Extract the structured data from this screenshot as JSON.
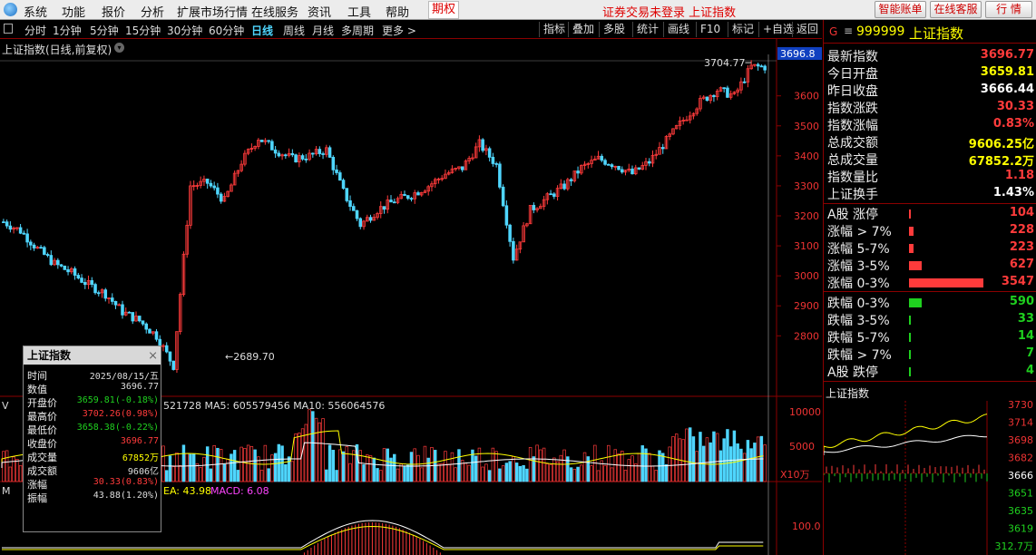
{
  "menu": {
    "items": [
      "系统",
      "功能",
      "报价",
      "分析",
      "扩展市场行情",
      "在线服务",
      "资讯",
      "工具",
      "帮助"
    ],
    "qi_label": "期权",
    "login_status": "证券交易未登录 上证指数",
    "right_buttons": [
      "智能账单",
      "在线客服",
      "行 情"
    ]
  },
  "toolbar": {
    "periods": [
      "分时",
      "1分钟",
      "5分钟",
      "15分钟",
      "30分钟",
      "60分钟",
      "日线",
      "周线",
      "月线",
      "多周期",
      "更多 >"
    ],
    "active_period": "日线",
    "tools": [
      "指标",
      "叠加",
      "多股",
      "统计",
      "画线",
      "F10",
      "标记",
      "+自选",
      "返回"
    ]
  },
  "chart": {
    "title": "上证指数(日线,前复权)",
    "last_price_tag": "3696.8",
    "high_label": "3704.77",
    "low_label": "2689.70",
    "y_ticks": [
      "3600",
      "3500",
      "3400",
      "3300",
      "3200",
      "3100",
      "3000",
      "2900",
      "2800"
    ],
    "volume_legend_prefix": "V",
    "volume_legend": "521728  MA5: 605579456  MA10: 556064576",
    "volume_ticks": [
      "10000",
      "5000"
    ],
    "volume_unit": "X10万",
    "macd_legend_prefix": "M",
    "macd_dea": "EA: 43.98",
    "macd_value": "MACD: 6.08",
    "macd_tick": "100.0"
  },
  "quote": {
    "code": "999999",
    "name": "上证指数",
    "g_mark": "G",
    "menu_icon": "≡",
    "rows": [
      {
        "label": "最新指数",
        "value": "3696.77",
        "color": "#ff3b3b"
      },
      {
        "label": "今日开盘",
        "value": "3659.81",
        "color": "#ffff00"
      },
      {
        "label": "昨日收盘",
        "value": "3666.44",
        "color": "#ffffff"
      },
      {
        "label": "指数涨跌",
        "value": "30.33",
        "color": "#ff3b3b"
      },
      {
        "label": "指数涨幅",
        "value": "0.83%",
        "color": "#ff3b3b"
      },
      {
        "label": "总成交额",
        "value": "9606.25亿",
        "color": "#ffff00"
      },
      {
        "label": "总成交量",
        "value": "67852.2万",
        "color": "#ffff00"
      },
      {
        "label": "指数量比",
        "value": "1.18",
        "color": "#ff3b3b"
      },
      {
        "label": "上证换手",
        "value": "1.43%",
        "color": "#ffffff"
      }
    ],
    "breadth": [
      {
        "label": "A股 涨停",
        "value": "104",
        "color": "#ff3b3b"
      },
      {
        "label": "涨幅 > 7%",
        "value": "228",
        "color": "#ff3b3b"
      },
      {
        "label": "涨幅 5-7%",
        "value": "223",
        "color": "#ff3b3b"
      },
      {
        "label": "涨幅 3-5%",
        "value": "627",
        "color": "#ff3b3b"
      },
      {
        "label": "涨幅 0-3%",
        "value": "3547",
        "color": "#ff3b3b"
      },
      {
        "label": "跌幅 0-3%",
        "value": "590",
        "color": "#1fd11f"
      },
      {
        "label": "跌幅 3-5%",
        "value": "33",
        "color": "#1fd11f"
      },
      {
        "label": "跌幅 5-7%",
        "value": "14",
        "color": "#1fd11f"
      },
      {
        "label": "跌幅 > 7%",
        "value": "7",
        "color": "#1fd11f"
      },
      {
        "label": "A股 跌停",
        "value": "4",
        "color": "#1fd11f"
      }
    ],
    "mini_title": "上证指数",
    "mini_ticks": [
      "3730",
      "3714",
      "3698",
      "3682",
      "3666",
      "3651",
      "3635",
      "3619",
      "312.7万"
    ]
  },
  "info": {
    "title": "上证指数",
    "rows": [
      {
        "k": "时间",
        "v": "2025/08/15/五",
        "color": "#dddddd"
      },
      {
        "k": "数值",
        "v": "3696.77",
        "color": "#dddddd"
      },
      {
        "k": "开盘价",
        "v": "3659.81(-0.18%)",
        "color": "#1fd11f"
      },
      {
        "k": "最高价",
        "v": "3702.26(0.98%)",
        "color": "#ff3b3b"
      },
      {
        "k": "最低价",
        "v": "3658.38(-0.22%)",
        "color": "#1fd11f"
      },
      {
        "k": "收盘价",
        "v": "3696.77",
        "color": "#ff3b3b"
      },
      {
        "k": "成交量",
        "v": "67852万",
        "color": "#ffff00"
      },
      {
        "k": "成交额",
        "v": "9606亿",
        "color": "#dddddd"
      },
      {
        "k": "涨幅",
        "v": "30.33(0.83%)",
        "color": "#ff3b3b"
      },
      {
        "k": "振幅",
        "v": "43.88(1.20%)",
        "color": "#dddddd"
      }
    ]
  },
  "colors": {
    "up": "#ff3b3b",
    "down": "#4fd6ff",
    "ma_yellow": "#ffff00",
    "ma_white": "#ffffff",
    "grid": "#8b0000"
  },
  "chart_data": {
    "type": "line",
    "series": [
      {
        "name": "上证指数",
        "values": [
          3180,
          3150,
          3090,
          3040,
          3010,
          2970,
          2940,
          2880,
          2850,
          2800,
          2700,
          3300,
          3310,
          3250,
          3380,
          3460,
          3420,
          3390,
          3400,
          3420,
          3280,
          3170,
          3220,
          3250,
          3270,
          3300,
          3340,
          3360,
          3440,
          3370,
          3060,
          3220,
          3260,
          3300,
          3360,
          3390,
          3370,
          3340,
          3380,
          3450,
          3520,
          3580,
          3620,
          3600,
          3697
        ]
      }
    ],
    "ylim": [
      2680,
      3720
    ],
    "grid": false
  }
}
